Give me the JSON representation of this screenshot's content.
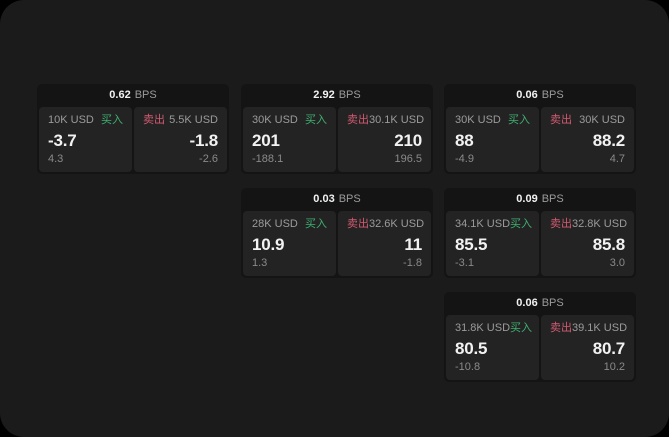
{
  "colors": {
    "screen_bg": "#1b1b1c",
    "card_bg": "#141414",
    "panel_bg": "#232324",
    "value_text": "#f2f2f2",
    "label_text": "#9b9b9b",
    "delta_text": "#8a8a8a",
    "buy": "#3fb06e",
    "sell": "#d25a70"
  },
  "cards": [
    {
      "bps_value": "0.62",
      "bps_unit": "BPS",
      "buy": {
        "amount": "10K USD",
        "label": "买入",
        "value": "-3.7",
        "delta": "4.3"
      },
      "sell": {
        "label": "卖出",
        "amount": "5.5K USD",
        "value": "-1.8",
        "delta": "-2.6"
      }
    },
    {
      "bps_value": "2.92",
      "bps_unit": "BPS",
      "buy": {
        "amount": "30K USD",
        "label": "买入",
        "value": "201",
        "delta": "-188.1"
      },
      "sell": {
        "label": "卖出",
        "amount": "30.1K USD",
        "value": "210",
        "delta": "196.5"
      }
    },
    {
      "bps_value": "0.06",
      "bps_unit": "BPS",
      "buy": {
        "amount": "30K USD",
        "label": "买入",
        "value": "88",
        "delta": "-4.9"
      },
      "sell": {
        "label": "卖出",
        "amount": "30K USD",
        "value": "88.2",
        "delta": "4.7"
      }
    },
    {
      "bps_value": "0.03",
      "bps_unit": "BPS",
      "buy": {
        "amount": "28K USD",
        "label": "买入",
        "value": "10.9",
        "delta": "1.3"
      },
      "sell": {
        "label": "卖出",
        "amount": "32.6K USD",
        "value": "11",
        "delta": "-1.8"
      }
    },
    {
      "bps_value": "0.09",
      "bps_unit": "BPS",
      "buy": {
        "amount": "34.1K USD",
        "label": "买入",
        "value": "85.5",
        "delta": "-3.1"
      },
      "sell": {
        "label": "卖出",
        "amount": "32.8K USD",
        "value": "85.8",
        "delta": "3.0"
      }
    },
    {
      "bps_value": "0.06",
      "bps_unit": "BPS",
      "buy": {
        "amount": "31.8K USD",
        "label": "买入",
        "value": "80.5",
        "delta": "-10.8"
      },
      "sell": {
        "label": "卖出",
        "amount": "39.1K USD",
        "value": "80.7",
        "delta": "10.2"
      }
    }
  ]
}
